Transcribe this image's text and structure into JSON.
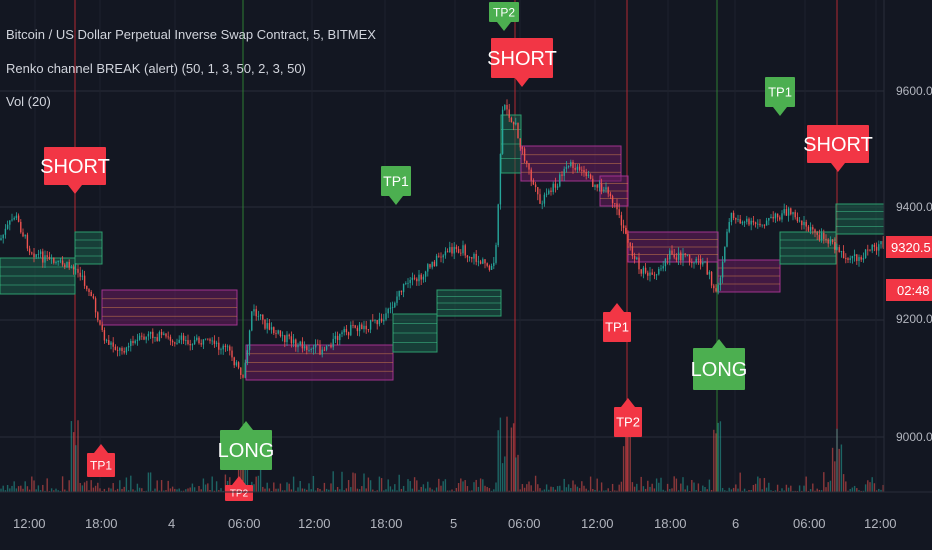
{
  "legend": {
    "symbol": "Bitcoin / US Dollar Perpetual Inverse Swap Contract, 5, BITMEX",
    "indicator": "Renko channel BREAK (alert) (50, 1, 3, 50, 2, 3, 50)",
    "volume": "Vol (20)"
  },
  "price_axis": {
    "ticks": [
      "9600.0",
      "9400.0",
      "9200.0",
      "9000.0"
    ],
    "last_price": "9320.5",
    "countdown": "02:48",
    "last_price_color": "#f23645"
  },
  "time_axis": {
    "ticks": [
      "12:00",
      "18:00",
      "4",
      "06:00",
      "12:00",
      "18:00",
      "5",
      "06:00",
      "12:00",
      "18:00",
      "6",
      "06:00",
      "12:00"
    ]
  },
  "colors": {
    "background": "#131722",
    "long": "#4caf50",
    "short": "#f23645",
    "up_candle": "#26a69a",
    "down_candle": "#ef5350",
    "bull_channel": "#1b5e4a",
    "bear_channel": "#6a1b5e"
  },
  "signals": [
    {
      "label": "SHORT",
      "type": "short"
    },
    {
      "label": "TP1",
      "type": "short"
    },
    {
      "label": "LONG",
      "type": "long"
    },
    {
      "label": "TP2",
      "type": "short"
    },
    {
      "label": "TP1",
      "type": "long"
    },
    {
      "label": "TP2",
      "type": "long"
    },
    {
      "label": "SHORT",
      "type": "short"
    },
    {
      "label": "TP1",
      "type": "short"
    },
    {
      "label": "TP2",
      "type": "short"
    },
    {
      "label": "LONG",
      "type": "long"
    },
    {
      "label": "TP1",
      "type": "long"
    },
    {
      "label": "SHORT",
      "type": "short"
    }
  ]
}
